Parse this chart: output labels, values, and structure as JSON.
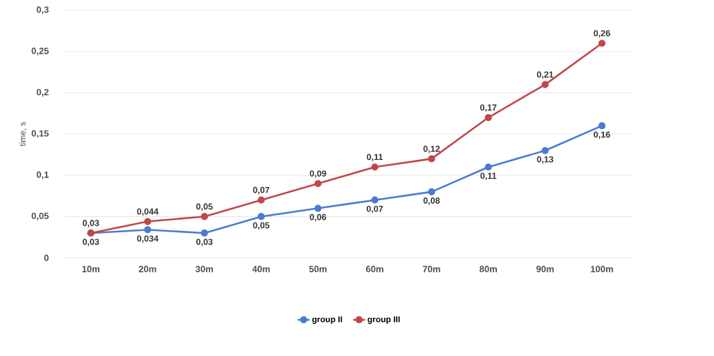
{
  "chart_data": {
    "type": "line",
    "ylabel": "time, s",
    "categories": [
      "10m",
      "20m",
      "30m",
      "40m",
      "50m",
      "60m",
      "70m",
      "80m",
      "90m",
      "100m"
    ],
    "series": [
      {
        "name": "group II",
        "color": "#4a7bd0",
        "values": [
          0.03,
          0.034,
          0.03,
          0.05,
          0.06,
          0.07,
          0.08,
          0.11,
          0.13,
          0.16
        ],
        "value_labels": [
          "0,03",
          "0,034",
          "0,03",
          "0,05",
          "0,06",
          "0,07",
          "0,08",
          "0,11",
          "0,13",
          "0,16"
        ]
      },
      {
        "name": "group III",
        "color": "#c0474a",
        "values": [
          0.03,
          0.044,
          0.05,
          0.07,
          0.09,
          0.11,
          0.12,
          0.17,
          0.21,
          0.26
        ],
        "value_labels": [
          "0,03",
          "0,044",
          "0,05",
          "0,07",
          "0,09",
          "0,11",
          "0,12",
          "0,17",
          "0,21",
          "0,26"
        ]
      }
    ],
    "ylim": [
      0,
      0.3
    ],
    "yticks": [
      {
        "value": 0,
        "label": "0"
      },
      {
        "value": 0.05,
        "label": "0,05"
      },
      {
        "value": 0.1,
        "label": "0,1"
      },
      {
        "value": 0.15,
        "label": "0,15"
      },
      {
        "value": 0.2,
        "label": "0,2"
      },
      {
        "value": 0.25,
        "label": "0,25"
      },
      {
        "value": 0.3,
        "label": "0,3"
      }
    ],
    "grid": "y",
    "legend": "bottom",
    "marker": "circle",
    "line_style": "solid"
  }
}
